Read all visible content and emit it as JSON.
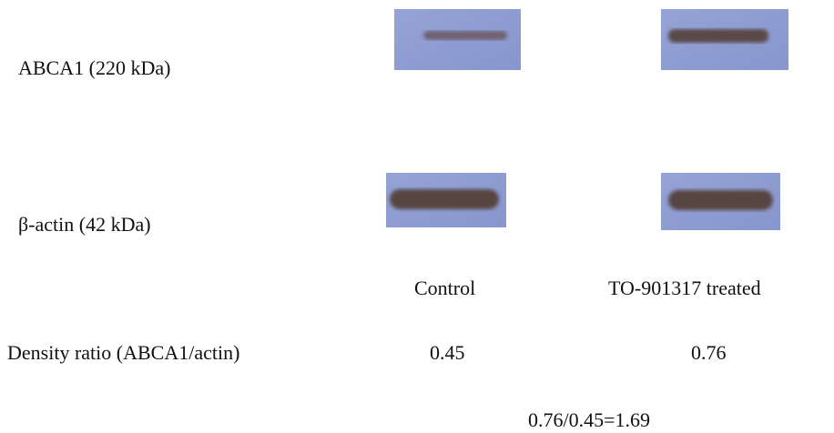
{
  "rows": [
    {
      "label": "ABCA1 (220 kDa)"
    },
    {
      "label": "β-actin (42 kDa)"
    }
  ],
  "lanes": [
    "Control",
    "TO-901317 treated"
  ],
  "density": {
    "label": "Density ratio (ABCA1/actin)",
    "values": [
      0.45,
      0.76
    ]
  },
  "calculation": "0.76/0.45=1.69"
}
